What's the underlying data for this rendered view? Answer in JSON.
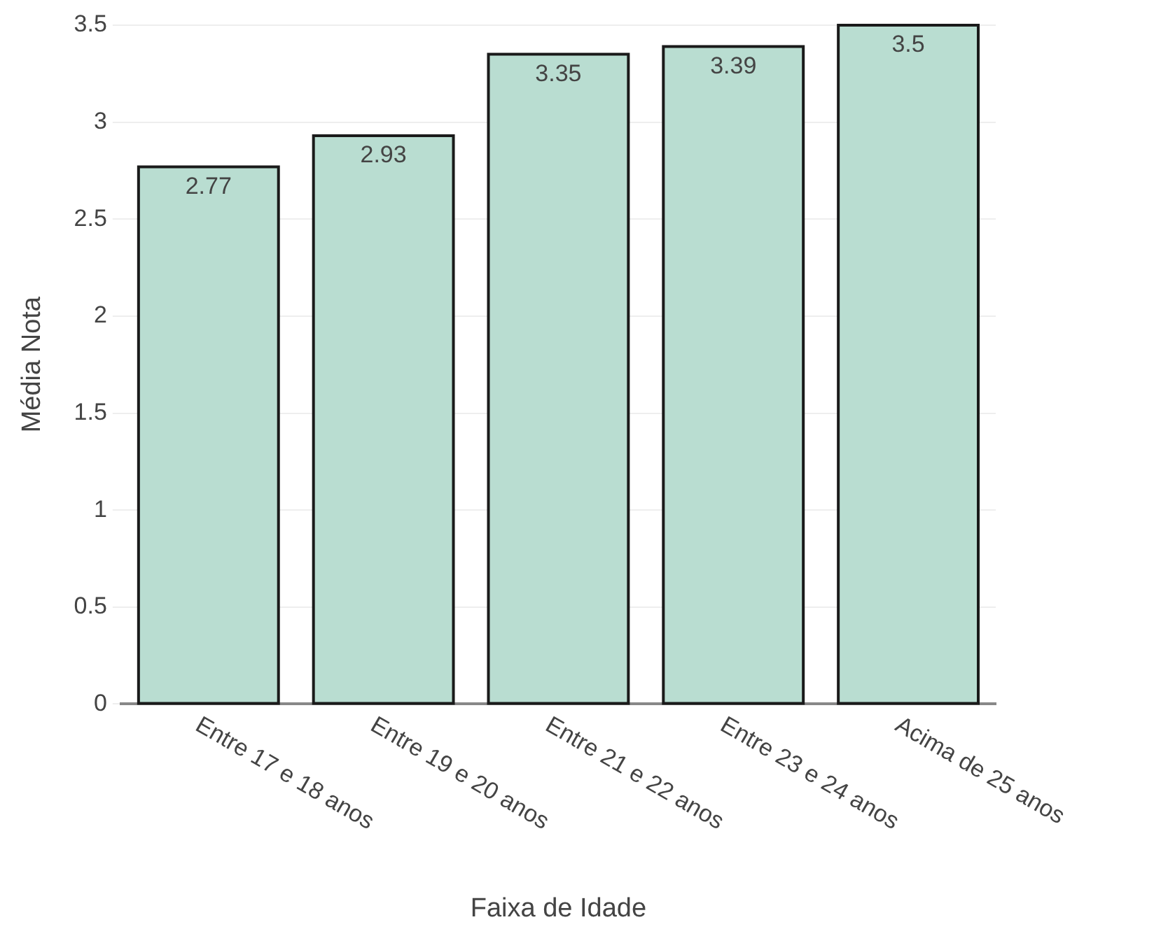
{
  "chart_data": {
    "type": "bar",
    "xlabel": "Faixa de Idade",
    "ylabel": "Média Nota",
    "categories": [
      "Entre 17 e 18 anos",
      "Entre 19 e 20 anos",
      "Entre 21 e 22 anos",
      "Entre 23 e 24 anos",
      "Acima de 25 anos"
    ],
    "values": [
      2.77,
      2.93,
      3.35,
      3.39,
      3.5
    ],
    "color": "#b9ddd1",
    "ylim": [
      0,
      3.5
    ],
    "yticks": [
      0,
      0.5,
      1,
      1.5,
      2,
      2.5,
      3,
      3.5
    ],
    "grid": "y",
    "data_labels": true
  }
}
